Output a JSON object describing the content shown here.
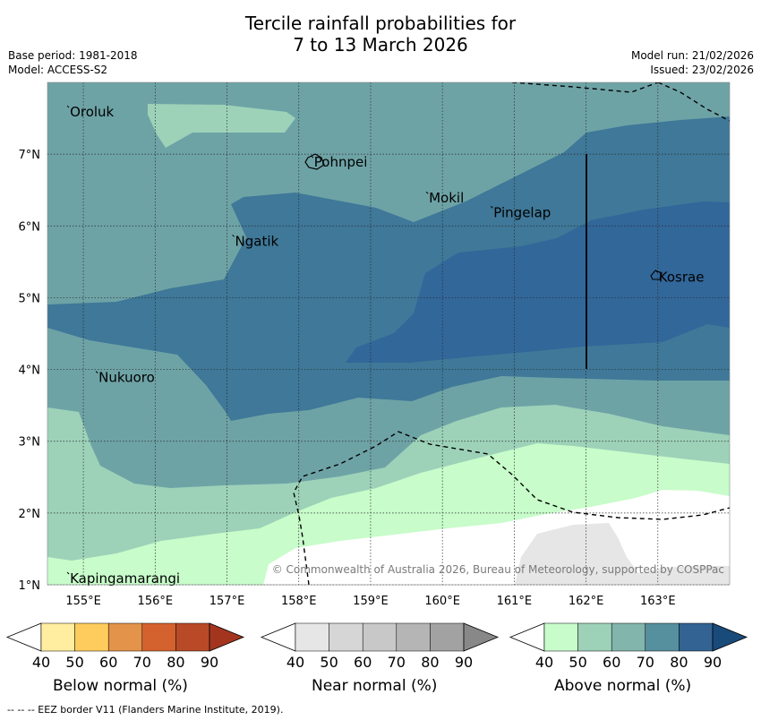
{
  "title": {
    "line1": "Tercile rainfall probabilities for",
    "line2": "7 to 13 March 2026"
  },
  "meta": {
    "base_period": "Base period: 1981-2018",
    "model": "Model: ACCESS-S2",
    "model_run": "Model run: 21/02/2026",
    "issued": "Issued: 23/02/2026"
  },
  "map": {
    "lon_ticks": [
      "155°E",
      "156°E",
      "157°E",
      "158°E",
      "159°E",
      "160°E",
      "161°E",
      "162°E",
      "163°E"
    ],
    "lat_ticks": [
      "7°N",
      "6°N",
      "5°N",
      "4°N",
      "3°N",
      "2°N",
      "1°N"
    ],
    "islands": [
      {
        "name": "Oroluk",
        "lon": 154.8,
        "lat": 7.6
      },
      {
        "name": "Pohnpei",
        "lon": 158.2,
        "lat": 6.9
      },
      {
        "name": "Mokil",
        "lon": 159.8,
        "lat": 6.4
      },
      {
        "name": "Pingelap",
        "lon": 160.7,
        "lat": 6.2
      },
      {
        "name": "Ngatik",
        "lon": 157.1,
        "lat": 5.8
      },
      {
        "name": "Kosrae",
        "lon": 163.0,
        "lat": 5.3
      },
      {
        "name": "Nukuoro",
        "lon": 155.2,
        "lat": 3.9
      },
      {
        "name": "Kapingamarangi",
        "lon": 154.8,
        "lat": 1.1
      }
    ],
    "copyright": "© Commonwealth of Australia 2026, Bureau of Meteorology, supported by COSPPac",
    "footnote": "--  --  -- EEZ border V11 (Flanders Marine Institute, 2019)."
  },
  "colorbars": [
    {
      "label": "Below normal (%)",
      "ticks": [
        "40",
        "50",
        "60",
        "70",
        "80",
        "90"
      ],
      "colors": [
        "#ffeda0",
        "#fecc5c",
        "#e3934a",
        "#d4622f",
        "#b84a28",
        "#a3351f"
      ]
    },
    {
      "label": "Near normal (%)",
      "ticks": [
        "40",
        "50",
        "60",
        "70",
        "80",
        "90"
      ],
      "colors": [
        "#e6e6e6",
        "#d6d6d6",
        "#c8c8c8",
        "#b5b5b5",
        "#a2a2a2",
        "#888888"
      ]
    },
    {
      "label": "Above normal (%)",
      "ticks": [
        "40",
        "50",
        "60",
        "70",
        "80",
        "90"
      ],
      "colors": [
        "#c8fcca",
        "#9dd2b9",
        "#82b5ab",
        "#568f9e",
        "#326393",
        "#194b7a"
      ]
    }
  ]
}
